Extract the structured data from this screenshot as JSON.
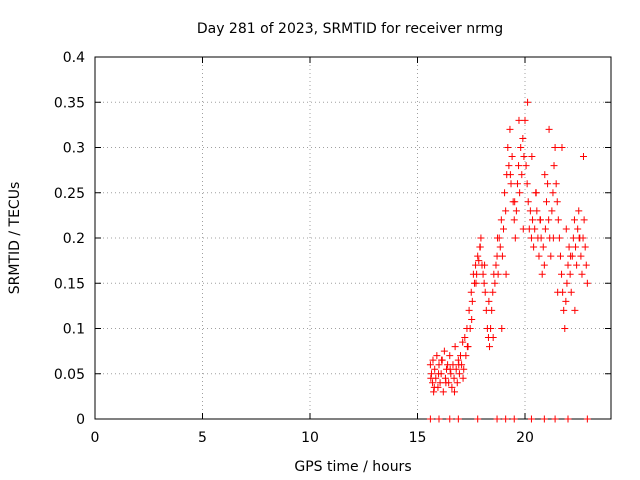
{
  "chart_data": {
    "type": "scatter",
    "title": "Day 281 of 2023, SRMTID for receiver nrmg",
    "xlabel": "GPS time / hours",
    "ylabel": "SRMTID / TECUs",
    "xlim": [
      0,
      24
    ],
    "ylim": [
      0,
      0.4
    ],
    "grid": true,
    "marker": "plus",
    "color": "#ff0000",
    "x_ticks": [
      0,
      5,
      10,
      15,
      20
    ],
    "x_tick_labels": [
      "0",
      "5",
      "10",
      "15",
      "20"
    ],
    "y_ticks": [
      0,
      0.05,
      0.1,
      0.15,
      0.2,
      0.25,
      0.3,
      0.35,
      0.4
    ],
    "y_tick_labels": [
      "0",
      "0.05",
      "0.1",
      "0.15",
      "0.2",
      "0.25",
      "0.3",
      "0.35",
      "0.4"
    ],
    "series": [
      {
        "name": "SRMTID",
        "x": [
          15.6,
          15.65,
          15.7,
          15.72,
          15.75,
          15.8,
          15.85,
          15.9,
          15.95,
          16.0,
          16.05,
          16.1,
          16.15,
          16.2,
          16.25,
          16.3,
          16.35,
          16.4,
          16.45,
          16.5,
          16.55,
          16.6,
          16.65,
          16.7,
          16.75,
          16.8,
          16.85,
          16.9,
          16.95,
          17.0,
          17.05,
          17.1,
          17.15,
          17.2,
          17.25,
          17.3,
          17.35,
          17.4,
          17.45,
          17.5,
          17.55,
          17.6,
          17.65,
          17.7,
          17.75,
          17.8,
          17.85,
          17.9,
          17.95,
          18.0,
          18.05,
          18.1,
          18.15,
          18.2,
          18.25,
          18.3,
          18.35,
          18.4,
          18.45,
          18.5,
          18.55,
          18.6,
          18.65,
          18.7,
          18.75,
          18.8,
          18.85,
          18.9,
          18.95,
          19.0,
          19.05,
          19.1,
          19.15,
          19.2,
          19.25,
          19.3,
          19.35,
          19.4,
          19.45,
          19.5,
          19.55,
          19.6,
          19.65,
          19.7,
          19.75,
          19.8,
          19.85,
          19.9,
          19.95,
          20.0,
          20.05,
          20.1,
          20.15,
          20.2,
          20.25,
          20.3,
          20.35,
          20.4,
          20.45,
          20.5,
          20.55,
          20.6,
          20.65,
          20.7,
          20.75,
          20.8,
          20.85,
          20.9,
          20.95,
          21.0,
          21.05,
          21.1,
          21.15,
          21.2,
          21.25,
          21.3,
          21.35,
          21.4,
          21.45,
          21.5,
          21.55,
          21.6,
          21.65,
          21.7,
          21.75,
          21.8,
          21.85,
          21.9,
          21.95,
          22.0,
          22.05,
          22.1,
          22.15,
          22.2,
          22.25,
          22.3,
          22.35,
          22.4,
          22.45,
          22.5,
          22.55,
          22.6,
          22.65,
          22.7,
          22.75,
          22.8,
          22.85,
          22.9,
          15.62,
          15.78,
          15.98,
          16.12,
          16.32,
          16.52,
          16.72,
          16.92,
          17.12,
          17.32,
          17.52,
          17.72,
          17.92,
          18.12,
          18.32,
          18.52,
          18.72,
          18.92,
          19.12,
          19.32,
          19.52,
          19.72,
          19.92,
          20.12,
          20.32,
          20.52,
          20.72,
          20.92,
          21.12,
          21.32,
          21.52,
          21.72,
          21.92,
          22.12,
          22.32,
          22.52,
          22.72,
          15.6,
          16.0,
          16.5,
          16.9,
          17.8,
          18.7,
          19.1,
          19.5,
          20.3,
          20.9,
          21.4,
          22.0,
          22.9
        ],
        "y": [
          0.06,
          0.05,
          0.04,
          0.065,
          0.03,
          0.055,
          0.045,
          0.07,
          0.035,
          0.06,
          0.04,
          0.05,
          0.065,
          0.03,
          0.075,
          0.045,
          0.055,
          0.06,
          0.04,
          0.07,
          0.05,
          0.035,
          0.06,
          0.045,
          0.08,
          0.055,
          0.04,
          0.065,
          0.05,
          0.07,
          0.06,
          0.085,
          0.055,
          0.09,
          0.07,
          0.1,
          0.08,
          0.12,
          0.1,
          0.14,
          0.13,
          0.16,
          0.15,
          0.17,
          0.16,
          0.18,
          0.175,
          0.19,
          0.2,
          0.17,
          0.16,
          0.15,
          0.14,
          0.12,
          0.1,
          0.09,
          0.08,
          0.1,
          0.12,
          0.14,
          0.16,
          0.15,
          0.17,
          0.18,
          0.16,
          0.2,
          0.19,
          0.22,
          0.18,
          0.21,
          0.25,
          0.23,
          0.27,
          0.3,
          0.28,
          0.32,
          0.26,
          0.29,
          0.24,
          0.22,
          0.2,
          0.23,
          0.26,
          0.28,
          0.25,
          0.3,
          0.27,
          0.31,
          0.29,
          0.33,
          0.28,
          0.26,
          0.24,
          0.21,
          0.23,
          0.2,
          0.22,
          0.19,
          0.21,
          0.25,
          0.23,
          0.2,
          0.18,
          0.22,
          0.2,
          0.16,
          0.19,
          0.17,
          0.21,
          0.24,
          0.26,
          0.22,
          0.2,
          0.18,
          0.23,
          0.25,
          0.28,
          0.3,
          0.26,
          0.24,
          0.22,
          0.2,
          0.18,
          0.16,
          0.14,
          0.12,
          0.1,
          0.13,
          0.15,
          0.17,
          0.19,
          0.16,
          0.14,
          0.18,
          0.2,
          0.22,
          0.19,
          0.17,
          0.21,
          0.23,
          0.2,
          0.18,
          0.16,
          0.2,
          0.22,
          0.19,
          0.17,
          0.15,
          0.045,
          0.035,
          0.05,
          0.065,
          0.04,
          0.055,
          0.03,
          0.06,
          0.045,
          0.08,
          0.11,
          0.15,
          0.19,
          0.17,
          0.13,
          0.09,
          0.2,
          0.1,
          0.16,
          0.27,
          0.24,
          0.33,
          0.21,
          0.35,
          0.29,
          0.25,
          0.22,
          0.27,
          0.32,
          0.2,
          0.14,
          0.3,
          0.21,
          0.18,
          0.12,
          0.2,
          0.29,
          0.0,
          0.0,
          0.0,
          0.0,
          0.0,
          0.0,
          0.0,
          0.0,
          0.0,
          0.0,
          0.0,
          0.0,
          0.0
        ]
      }
    ]
  }
}
